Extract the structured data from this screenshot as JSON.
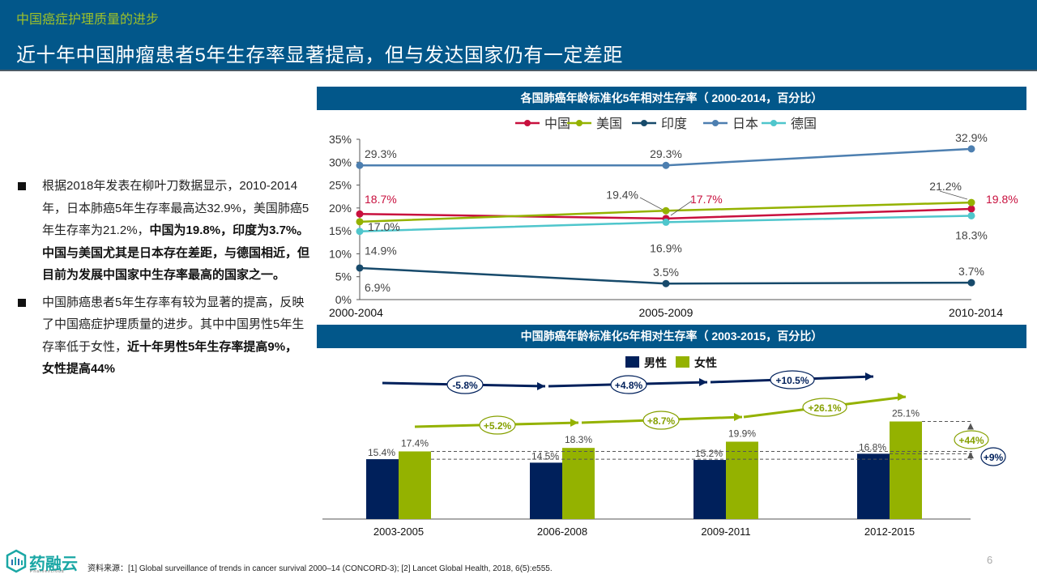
{
  "header": {
    "section": "中国癌症护理质量的进步",
    "title": "近十年中国肿瘤患者5年生存率显著提高，但与发达国家仍有一定差距"
  },
  "bullets": [
    {
      "normal": "根据2018年发表在柳叶刀数据显示，2010-2014年，日本肺癌5年生存率最高达32.9%，美国肺癌5年生存率为21.2%，",
      "bold": "中国为19.8%，印度为3.7%。中国与美国尤其是日本存在差距，与德国相近，但目前为发展中国家中生存率最高的国家之一。"
    },
    {
      "normal": "中国肺癌患者5年生存率有较为显著的提高，反映了中国癌症护理质量的进步。其中中国男性5年生存率低于女性，",
      "bold": "近十年男性5年生存率提高9%，女性提高44%"
    }
  ],
  "chart_data": [
    {
      "type": "line",
      "title": "各国肺癌年龄标准化5年相对生存率（ 2000-2014，百分比）",
      "categories": [
        "2000-2004",
        "2005-2009",
        "2010-2014"
      ],
      "ylim": [
        0,
        35
      ],
      "yticks": [
        "0%",
        "5%",
        "10%",
        "15%",
        "20%",
        "25%",
        "30%",
        "35%"
      ],
      "legend_position": "top",
      "grid": false,
      "series": [
        {
          "name": "中国",
          "color": "#c8103e",
          "values": [
            18.7,
            17.7,
            19.8
          ],
          "labels": [
            "18.7%",
            "17.7%",
            "19.8%"
          ]
        },
        {
          "name": "美国",
          "color": "#94b200",
          "values": [
            17.0,
            19.4,
            21.2
          ],
          "labels": [
            "17.0%",
            "19.4%",
            "21.2%"
          ]
        },
        {
          "name": "印度",
          "color": "#174a6b",
          "values": [
            6.9,
            3.5,
            3.7
          ],
          "labels": [
            "6.9%",
            "3.5%",
            "3.7%"
          ]
        },
        {
          "name": "日本",
          "color": "#4d7fb0",
          "values": [
            29.3,
            29.3,
            32.9
          ],
          "labels": [
            "29.3%",
            "29.3%",
            "32.9%"
          ]
        },
        {
          "name": "德国",
          "color": "#4fc6cc",
          "values": [
            14.9,
            16.9,
            18.3
          ],
          "labels": [
            "14.9%",
            "16.9%",
            "18.3%"
          ]
        }
      ]
    },
    {
      "type": "bar",
      "title": "中国肺癌年龄标准化5年相对生存率（ 2003-2015，百分比）",
      "categories": [
        "2003-2005",
        "2006-2008",
        "2009-2011",
        "2012-2015"
      ],
      "ylim": [
        0,
        30
      ],
      "legend_position": "top",
      "series": [
        {
          "name": "男性",
          "color": "#00205b",
          "values": [
            15.4,
            14.5,
            15.2,
            16.8
          ],
          "labels": [
            "15.4%",
            "14.5%",
            "15.2%",
            "16.8%"
          ]
        },
        {
          "name": "女性",
          "color": "#94b200",
          "values": [
            17.4,
            18.3,
            19.9,
            25.1
          ],
          "labels": [
            "17.4%",
            "18.3%",
            "19.9%",
            "25.1%"
          ]
        }
      ],
      "annotations": {
        "male_changes": [
          "-5.8%",
          "+4.8%",
          "+10.5%"
        ],
        "female_changes": [
          "+5.2%",
          "+8.7%",
          "+26.1%"
        ],
        "male_total": "+9%",
        "female_total": "+44%"
      }
    }
  ],
  "footer": {
    "logo": "药融云",
    "logo_sub": "Pharnexcloud",
    "source": "资料来源：[1] Global surveillance of trends in cancer survival 2000–14 (CONCORD-3);    [2] Lancet Global Health, 2018, 6(5):e555.",
    "page": "6"
  }
}
